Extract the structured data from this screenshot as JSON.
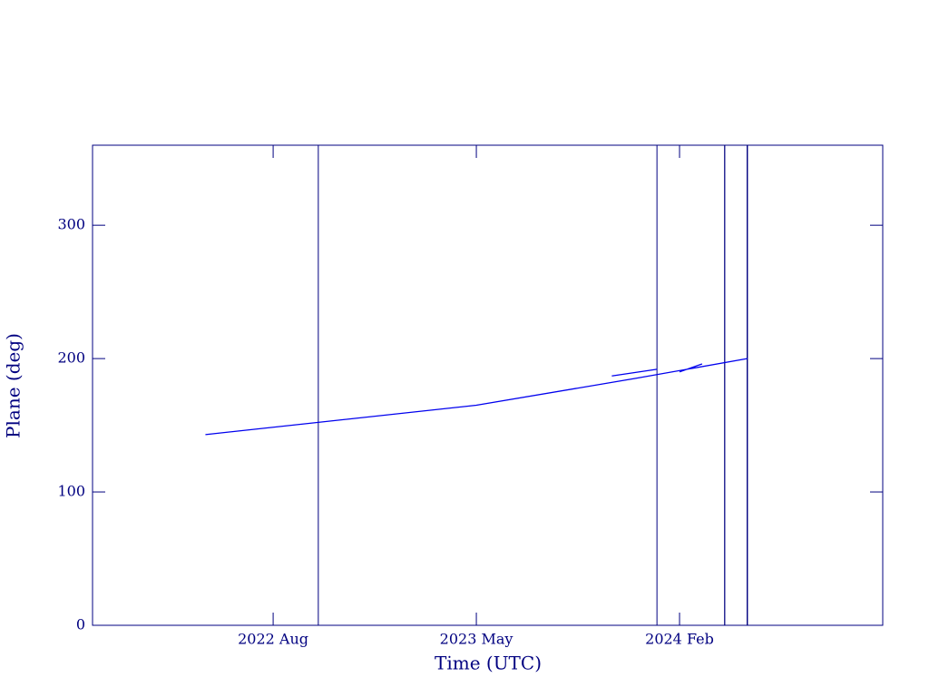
{
  "chart_data": {
    "type": "line",
    "x_label": "Time (UTC)",
    "y_label": "Plane (deg)",
    "xlim": [
      "2021-12",
      "2024-11"
    ],
    "xticks": [
      {
        "value": "2022-08",
        "label": "2022 Aug"
      },
      {
        "value": "2023-05",
        "label": "2023 May"
      },
      {
        "value": "2024-02",
        "label": "2024 Feb"
      }
    ],
    "ylim": [
      0,
      360
    ],
    "yticks": [
      0,
      100,
      200,
      300
    ],
    "axis_color": "#000080",
    "x": [
      "2022-05",
      "2023-05",
      "2023-12",
      "2024-05",
      null,
      "2023-11",
      "2024-01",
      null,
      "2024-02",
      "2024-03"
    ],
    "series": [
      {
        "color": "#0000ee",
        "values": [
          143,
          165,
          185,
          200,
          null,
          187,
          192,
          null,
          190,
          196
        ]
      }
    ],
    "vlines": {
      "color": "#000080",
      "x": [
        "2022-10",
        "2024-01",
        "2024-04",
        "2024-04",
        "2024-05",
        "2024-05",
        "2024-05",
        "2024-05"
      ]
    }
  }
}
